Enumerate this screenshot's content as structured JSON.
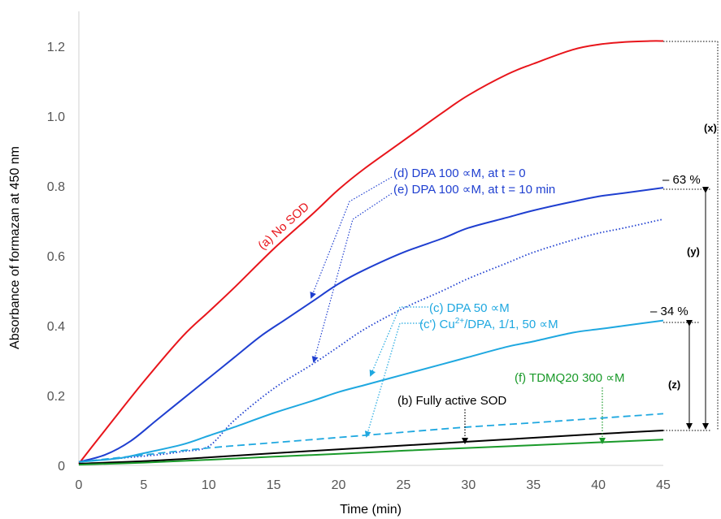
{
  "chart_data": {
    "type": "line",
    "xlabel": "Time (min)",
    "ylabel": "Absorbance of formazan at 450 nm",
    "xlim": [
      0,
      45
    ],
    "ylim": [
      0,
      1.3
    ],
    "x_ticks": [
      "0",
      "5",
      "10",
      "15",
      "20",
      "25",
      "30",
      "35",
      "40",
      "45"
    ],
    "y_ticks": [
      "0",
      "0.2",
      "0.4",
      "0.6",
      "0.8",
      "1.0",
      "1.2"
    ],
    "grid": false,
    "colors": {
      "red": "#e8151b",
      "blue": "#1f3fd0",
      "light_blue": "#1fa8e0",
      "black": "#000000",
      "green": "#1a9a2a"
    },
    "series": [
      {
        "name": "(a) No SOD",
        "color": "#e8151b",
        "style": "solid",
        "x": [
          0,
          2,
          5,
          8,
          10,
          12,
          15,
          18,
          20,
          22,
          25,
          28,
          30,
          33,
          35,
          38,
          40,
          42,
          44,
          45
        ],
        "y": [
          0.005,
          0.1,
          0.24,
          0.37,
          0.44,
          0.51,
          0.62,
          0.72,
          0.79,
          0.85,
          0.93,
          1.01,
          1.06,
          1.12,
          1.15,
          1.19,
          1.205,
          1.212,
          1.215,
          1.215
        ]
      },
      {
        "name": "(d) DPA 100 ∝M, at t = 0",
        "color": "#1f3fd0",
        "style": "solid",
        "x": [
          0,
          2,
          4,
          6,
          8,
          10,
          12,
          14,
          16,
          18,
          20,
          22,
          25,
          28,
          30,
          33,
          35,
          38,
          40,
          42,
          45
        ],
        "y": [
          0.01,
          0.03,
          0.07,
          0.13,
          0.19,
          0.25,
          0.31,
          0.37,
          0.42,
          0.47,
          0.52,
          0.56,
          0.61,
          0.65,
          0.68,
          0.71,
          0.73,
          0.755,
          0.77,
          0.78,
          0.795
        ]
      },
      {
        "name": "(e) DPA 100 ∝M, at t = 10 min",
        "color": "#1f3fd0",
        "style": "dotted",
        "x": [
          0,
          3,
          6,
          8,
          10,
          12,
          15,
          18,
          20,
          22,
          25,
          28,
          30,
          33,
          35,
          38,
          40,
          42,
          45
        ],
        "y": [
          0.01,
          0.02,
          0.03,
          0.04,
          0.055,
          0.13,
          0.22,
          0.29,
          0.34,
          0.39,
          0.45,
          0.5,
          0.535,
          0.58,
          0.61,
          0.645,
          0.665,
          0.68,
          0.705
        ]
      },
      {
        "name": "(c) DPA 50 ∝M",
        "color": "#1fa8e0",
        "style": "solid",
        "x": [
          0,
          3,
          5,
          8,
          10,
          12,
          15,
          18,
          20,
          22,
          25,
          28,
          30,
          33,
          35,
          38,
          40,
          42,
          45
        ],
        "y": [
          0.01,
          0.02,
          0.035,
          0.06,
          0.085,
          0.11,
          0.15,
          0.185,
          0.21,
          0.23,
          0.26,
          0.29,
          0.31,
          0.34,
          0.355,
          0.38,
          0.39,
          0.4,
          0.415
        ]
      },
      {
        "name": "(c') Cu²⁺/DPA, 1/1, 50 ∝M",
        "color": "#1fa8e0",
        "style": "dashed",
        "x": [
          0,
          5,
          10,
          15,
          20,
          25,
          30,
          35,
          40,
          45
        ],
        "y": [
          0.01,
          0.03,
          0.05,
          0.065,
          0.08,
          0.095,
          0.11,
          0.122,
          0.135,
          0.148
        ]
      },
      {
        "name": "(b) Fully active SOD",
        "color": "#000000",
        "style": "solid",
        "x": [
          0,
          5,
          10,
          15,
          20,
          25,
          30,
          35,
          40,
          45
        ],
        "y": [
          0.005,
          0.012,
          0.023,
          0.035,
          0.046,
          0.057,
          0.068,
          0.079,
          0.09,
          0.1
        ]
      },
      {
        "name": "(f) TDMQ20 300 ∝M",
        "color": "#1a9a2a",
        "style": "solid",
        "x": [
          0,
          5,
          10,
          15,
          20,
          25,
          30,
          35,
          40,
          45
        ],
        "y": [
          0.002,
          0.008,
          0.016,
          0.025,
          0.033,
          0.042,
          0.05,
          0.058,
          0.066,
          0.074
        ]
      }
    ],
    "annotations": {
      "a": "(a) No SOD",
      "d": "(d) DPA 100 ∝M, at t = 0",
      "e": "(e) DPA 100 ∝M, at t = 10 min",
      "c": "(c) DPA 50 ∝M",
      "cprime_prefix": "(c') Cu",
      "cprime_sup": "2+",
      "cprime_suffix": "/DPA, 1/1, 50 ∝M",
      "b": "(b) Fully active SOD",
      "f": "(f) TDMQ20 300 ∝M",
      "pct63": "– 63 %",
      "pct34": "– 34 %",
      "x": "(x)",
      "y": "(y)",
      "z": "(z)"
    }
  }
}
